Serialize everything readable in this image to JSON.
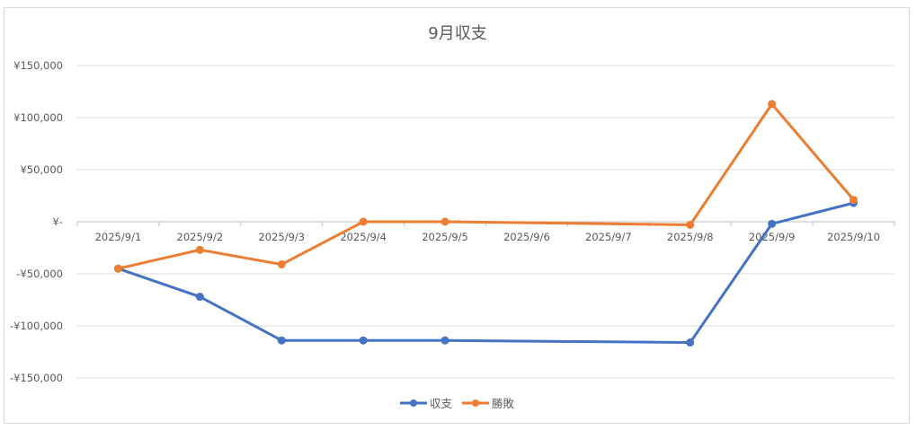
{
  "chart_data": {
    "type": "line",
    "title": "9月収支",
    "categories": [
      "2025/9/1",
      "2025/9/2",
      "2025/9/3",
      "2025/9/4",
      "2025/9/5",
      "2025/9/6",
      "2025/9/7",
      "2025/9/8",
      "2025/9/9",
      "2025/9/10"
    ],
    "y_ticks": [
      "¥150,000",
      "¥100,000",
      "¥50,000",
      "¥-",
      "-¥50,000",
      "-¥100,000",
      "-¥150,000"
    ],
    "y_tick_values": [
      150000,
      100000,
      50000,
      0,
      -50000,
      -100000,
      -150000
    ],
    "ylim": [
      -150000,
      150000
    ],
    "grid": true,
    "legend_position": "bottom",
    "series": [
      {
        "name": "収支",
        "color": "#4472C4",
        "values": [
          -45000,
          -72000,
          -114000,
          -114000,
          -114000,
          null,
          null,
          -116000,
          -2000,
          18000
        ]
      },
      {
        "name": "勝敗",
        "color": "#ED7D31",
        "values": [
          -45000,
          -27000,
          -41000,
          0,
          0,
          null,
          null,
          -3000,
          113000,
          21000
        ]
      }
    ]
  }
}
